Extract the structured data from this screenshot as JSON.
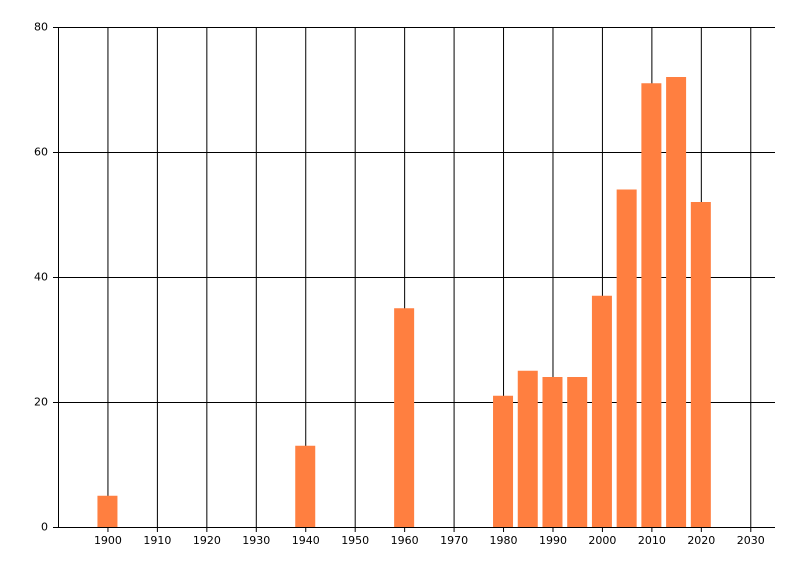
{
  "chart_data": {
    "type": "bar",
    "x": [
      1900,
      1940,
      1960,
      1980,
      1985,
      1990,
      1995,
      2000,
      2005,
      2010,
      2015,
      2020
    ],
    "values": [
      5,
      13,
      35,
      21,
      25,
      24,
      24,
      37,
      54,
      71,
      72,
      52
    ],
    "color": "#ff7f40",
    "xlim": [
      1890,
      2035
    ],
    "xticks": [
      1900,
      1910,
      1920,
      1930,
      1940,
      1950,
      1960,
      1970,
      1980,
      1990,
      2000,
      2010,
      2020,
      2030
    ],
    "ylim": [
      0,
      80
    ],
    "yticks": [
      0,
      20,
      40,
      60,
      80
    ],
    "grid": true
  }
}
